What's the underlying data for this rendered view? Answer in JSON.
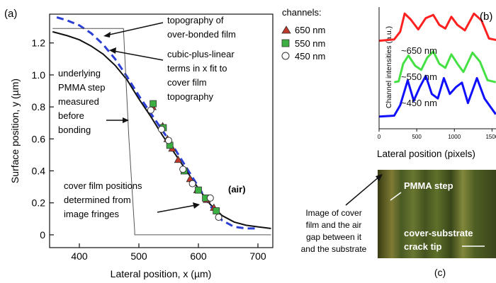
{
  "panel_labels": {
    "a": "(a)",
    "b": "(b)",
    "c": "(c)"
  },
  "annotations": {
    "topography": [
      "topography of",
      "over-bonded film"
    ],
    "fit": [
      "cubic-plus-linear",
      "terms in x fit to",
      "cover film",
      "topography"
    ],
    "pmma_step": [
      "underlying",
      "PMMA step",
      "measured",
      "before",
      "bonding"
    ],
    "fringes": [
      "cover film positions",
      "determined from",
      "image fringes"
    ],
    "air": "(air)",
    "image_caption": [
      "Image of cover",
      "film and the air",
      "gap between it",
      "and the substrate"
    ],
    "pmma_step_label": "PMMA step",
    "crack_tip": [
      "cover-substrate",
      "crack tip"
    ]
  },
  "legend": {
    "title": "channels:",
    "entries": [
      {
        "label": "650 nm",
        "marker": "triangle",
        "color": "#c0392b"
      },
      {
        "label": "550 nm",
        "marker": "square",
        "color": "#3cb043"
      },
      {
        "label": "450 nm",
        "marker": "circle",
        "color": "#ffffff"
      }
    ]
  },
  "chart_data": [
    {
      "type": "scatter",
      "xlabel": "Lateral position, x (µm)",
      "ylabel": "Surface position, y (µm)",
      "xlim": [
        350,
        725
      ],
      "ylim": [
        -0.08,
        1.38
      ],
      "xticks": [
        400,
        500,
        600,
        700
      ],
      "yticks": [
        0,
        0.2,
        0.4,
        0.6,
        0.8,
        1.0,
        1.2
      ],
      "tick_labels_x": [
        "400",
        "500",
        "600",
        "700"
      ],
      "tick_labels_y": [
        "0",
        "0.2",
        "0.4",
        "0.6",
        "0.8",
        "1.0",
        "1.2"
      ],
      "curves": [
        {
          "style": "solid-black",
          "points": [
            [
              355,
              1.27
            ],
            [
              380,
              1.245
            ],
            [
              400,
              1.22
            ],
            [
              420,
              1.18
            ],
            [
              440,
              1.13
            ],
            [
              460,
              1.06
            ],
            [
              480,
              0.97
            ],
            [
              500,
              0.85
            ],
            [
              520,
              0.74
            ],
            [
              540,
              0.62
            ],
            [
              560,
              0.51
            ],
            [
              580,
              0.4
            ],
            [
              600,
              0.29
            ],
            [
              620,
              0.19
            ],
            [
              640,
              0.12
            ],
            [
              660,
              0.08
            ],
            [
              680,
              0.06
            ],
            [
              700,
              0.05
            ],
            [
              722,
              0.04
            ]
          ]
        },
        {
          "style": "dashed-blue",
          "points": [
            [
              362,
              1.36
            ],
            [
              380,
              1.34
            ],
            [
              400,
              1.31
            ],
            [
              420,
              1.26
            ],
            [
              440,
              1.19
            ],
            [
              460,
              1.1
            ],
            [
              480,
              0.99
            ],
            [
              500,
              0.87
            ],
            [
              520,
              0.76
            ],
            [
              540,
              0.65
            ],
            [
              560,
              0.54
            ],
            [
              580,
              0.42
            ],
            [
              600,
              0.3
            ],
            [
              620,
              0.18
            ],
            [
              640,
              0.09
            ],
            [
              660,
              0.05
            ],
            [
              680,
              0.04
            ],
            [
              700,
              0.04
            ]
          ]
        },
        {
          "style": "step-gray",
          "points": [
            [
              355,
              1.29
            ],
            [
              474,
              1.29
            ],
            [
              483,
              0.62
            ],
            [
              493,
              0.02
            ],
            [
              493,
              0.0
            ],
            [
              722,
              0.0
            ]
          ]
        }
      ],
      "series": [
        {
          "name": "650 nm",
          "marker": "triangle",
          "points": [
            [
              523,
              0.8
            ],
            [
              540,
              0.68
            ],
            [
              548,
              0.6
            ],
            [
              556,
              0.54
            ],
            [
              566,
              0.47
            ],
            [
              586,
              0.35
            ],
            [
              598,
              0.28
            ],
            [
              614,
              0.22
            ],
            [
              626,
              0.17
            ]
          ]
        },
        {
          "name": "550 nm",
          "marker": "square",
          "points": [
            [
              524,
              0.82
            ],
            [
              541,
              0.67
            ],
            [
              552,
              0.56
            ],
            [
              576,
              0.4
            ],
            [
              600,
              0.28
            ],
            [
              612,
              0.23
            ],
            [
              630,
              0.15
            ]
          ]
        },
        {
          "name": "450 nm",
          "marker": "circle",
          "points": [
            [
              520,
              0.78
            ],
            [
              538,
              0.66
            ],
            [
              550,
              0.59
            ],
            [
              574,
              0.41
            ],
            [
              590,
              0.32
            ],
            [
              620,
              0.23
            ],
            [
              634,
              0.11
            ]
          ]
        }
      ]
    },
    {
      "type": "line",
      "xlabel": "Lateral position (pixels)",
      "ylabel": "Channel intensities (a.u.)",
      "xlim": [
        0,
        1600
      ],
      "xticks": [
        0,
        500,
        1000,
        1500
      ],
      "tick_labels_x": [
        "0",
        "500",
        "1000",
        "1500"
      ],
      "series": [
        {
          "name": "~650 nm",
          "color": "#ff2020",
          "points": [
            [
              0,
              0.35
            ],
            [
              200,
              0.38
            ],
            [
              280,
              0.55
            ],
            [
              340,
              0.95
            ],
            [
              420,
              0.82
            ],
            [
              520,
              0.6
            ],
            [
              620,
              0.85
            ],
            [
              720,
              0.92
            ],
            [
              800,
              0.7
            ],
            [
              880,
              0.62
            ],
            [
              960,
              0.88
            ],
            [
              1040,
              0.7
            ],
            [
              1140,
              0.58
            ],
            [
              1260,
              0.95
            ],
            [
              1360,
              0.8
            ],
            [
              1460,
              0.4
            ],
            [
              1600,
              0.35
            ]
          ]
        },
        {
          "name": "~550 nm",
          "color": "#44e044",
          "points": [
            [
              200,
              0.1
            ],
            [
              260,
              0.12
            ],
            [
              320,
              0.55
            ],
            [
              390,
              0.75
            ],
            [
              480,
              0.5
            ],
            [
              560,
              0.4
            ],
            [
              640,
              0.7
            ],
            [
              720,
              0.85
            ],
            [
              800,
              0.55
            ],
            [
              880,
              0.45
            ],
            [
              960,
              0.78
            ],
            [
              1040,
              0.55
            ],
            [
              1120,
              0.35
            ],
            [
              1240,
              0.82
            ],
            [
              1340,
              0.6
            ],
            [
              1440,
              0.15
            ],
            [
              1550,
              0.1
            ]
          ]
        },
        {
          "name": "~450 nm",
          "color": "#1010ff",
          "points": [
            [
              0,
              0.05
            ],
            [
              200,
              0.07
            ],
            [
              280,
              0.3
            ],
            [
              380,
              0.85
            ],
            [
              460,
              0.4
            ],
            [
              540,
              0.7
            ],
            [
              620,
              0.95
            ],
            [
              700,
              0.55
            ],
            [
              780,
              0.45
            ],
            [
              860,
              0.9
            ],
            [
              940,
              0.55
            ],
            [
              1020,
              0.7
            ],
            [
              1100,
              0.8
            ],
            [
              1180,
              0.35
            ],
            [
              1300,
              0.9
            ],
            [
              1400,
              0.45
            ],
            [
              1550,
              0.1
            ]
          ]
        }
      ]
    }
  ]
}
